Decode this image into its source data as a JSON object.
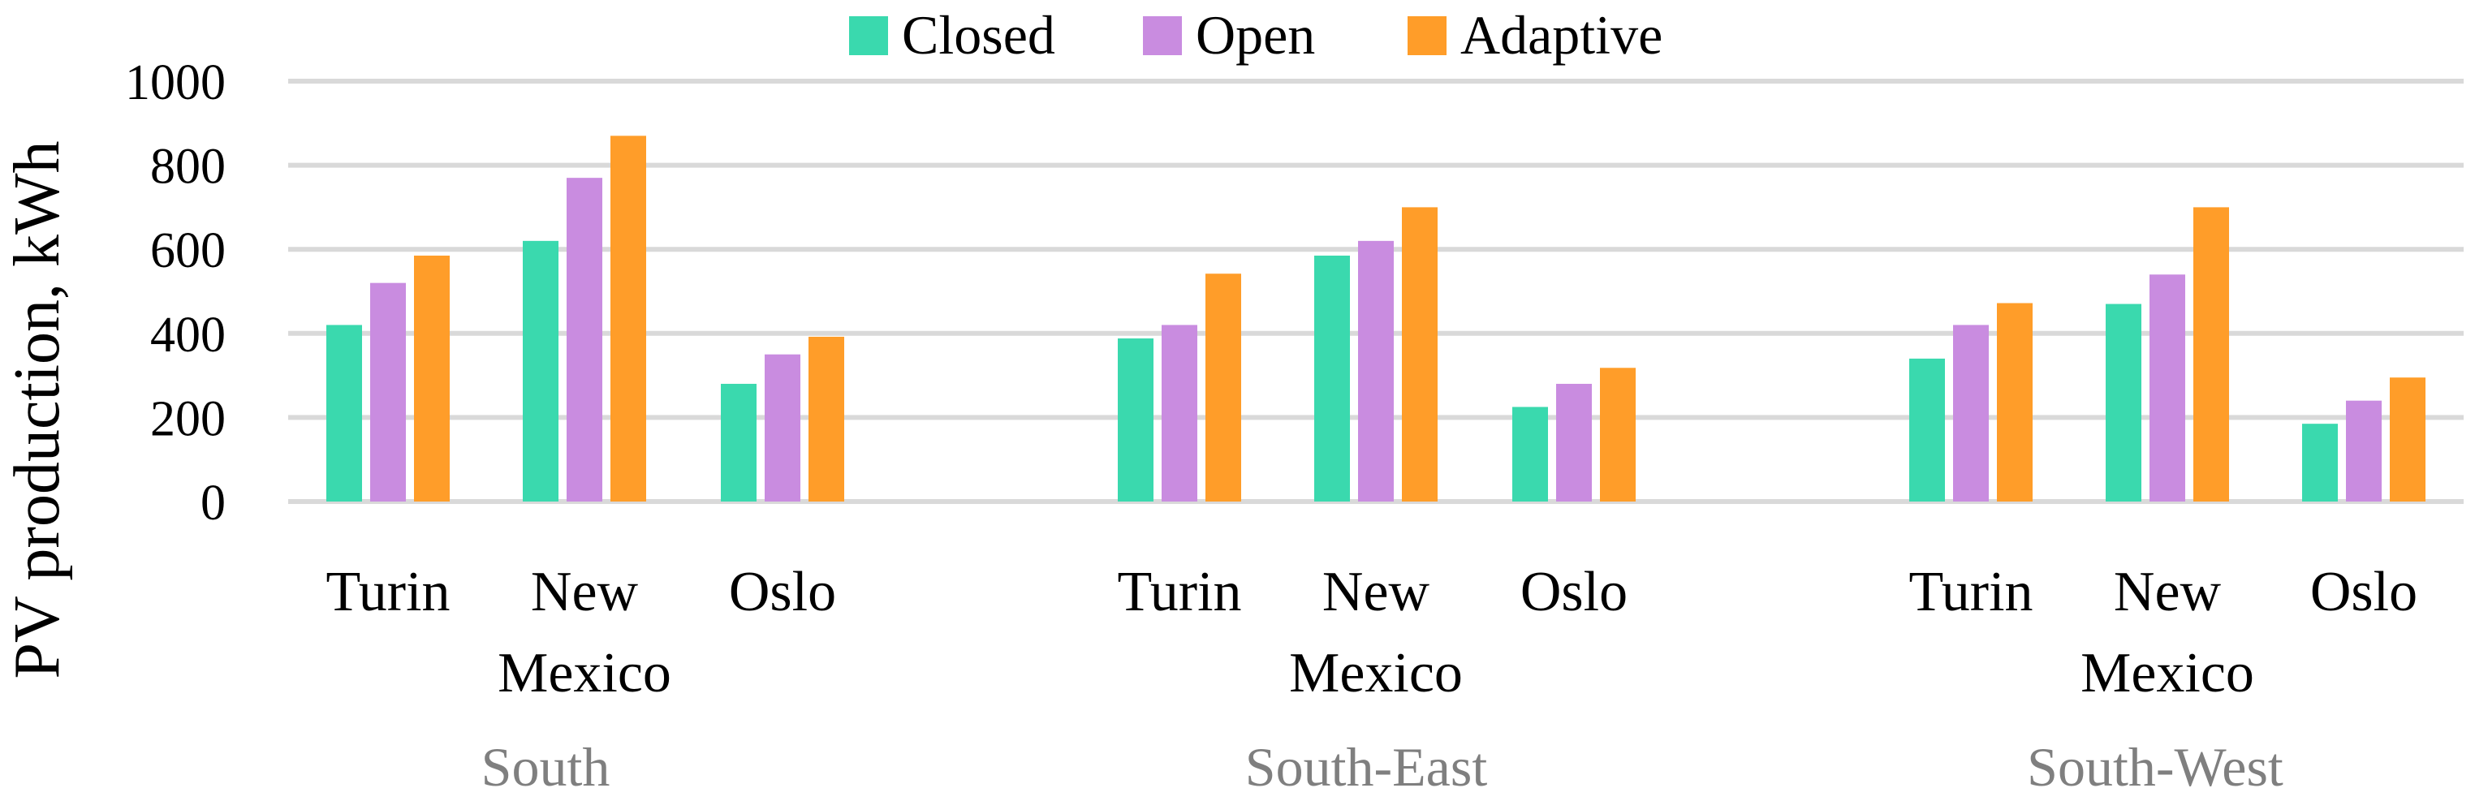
{
  "chart_data": {
    "type": "bar",
    "title": "",
    "xlabel": "",
    "ylabel": "PV production, kWh",
    "ylim": [
      0,
      1000
    ],
    "yticks": [
      0,
      200,
      400,
      600,
      800,
      1000
    ],
    "grid": true,
    "legend_position": "top",
    "groups": [
      {
        "label": "South",
        "categories": [
          [
            "Turin"
          ],
          [
            "New",
            "Mexico"
          ],
          [
            "Oslo"
          ]
        ]
      },
      {
        "label": "South-East",
        "categories": [
          [
            "Turin"
          ],
          [
            "New",
            "Mexico"
          ],
          [
            "Oslo"
          ]
        ]
      },
      {
        "label": "South-West",
        "categories": [
          [
            "Turin"
          ],
          [
            "New",
            "Mexico"
          ],
          [
            "Oslo"
          ]
        ]
      }
    ],
    "series": [
      {
        "name": "Closed",
        "color": "#3ad9ae",
        "values": [
          420,
          620,
          280,
          388,
          585,
          225,
          340,
          470,
          185
        ]
      },
      {
        "name": "Open",
        "color": "#c98ce0",
        "values": [
          520,
          770,
          350,
          420,
          620,
          280,
          420,
          540,
          240
        ]
      },
      {
        "name": "Adaptive",
        "color": "#ff9d29",
        "values": [
          585,
          870,
          392,
          542,
          700,
          318,
          472,
          700,
          295
        ]
      }
    ]
  }
}
